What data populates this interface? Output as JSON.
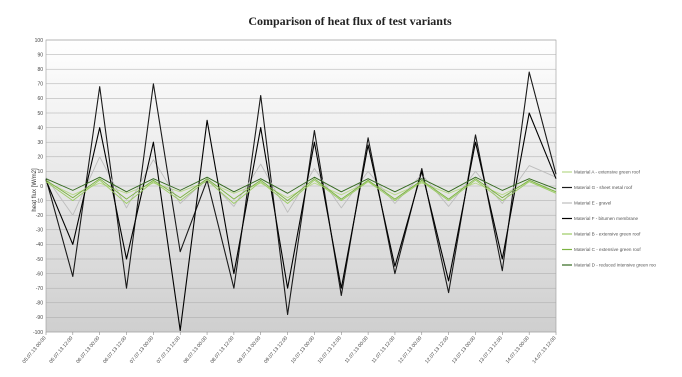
{
  "chart_data": {
    "type": "line",
    "title": "Comparison of heat flux of test variants",
    "xlabel": "",
    "ylabel": "heat flux [W/m2]",
    "ylim": [
      -100,
      100
    ],
    "yticks": [
      100,
      90,
      80,
      70,
      60,
      50,
      40,
      30,
      20,
      10,
      0,
      -10,
      -20,
      -30,
      -40,
      -50,
      -60,
      -70,
      -80,
      -90,
      -100
    ],
    "grid": true,
    "legend_position": "right",
    "x": [
      "05.07.13 00:00",
      "05.07.13 12:00",
      "06.07.13 00:00",
      "06.07.13 12:00",
      "07.07.13 00:00",
      "07.07.13 12:00",
      "08.07.13 00:00",
      "08.07.13 12:00",
      "09.07.13 00:00",
      "09.07.13 12:00",
      "10.07.13 00:00",
      "10.07.13 12:00",
      "11.07.13 00:00",
      "11.07.13 12:00",
      "12.07.13 00:00",
      "12.07.13 12:00",
      "13.07.13 00:00",
      "13.07.13 12:00",
      "14.07.13 00:00",
      "14.07.13 12:00"
    ],
    "series": [
      {
        "name": "Material A - extensive green roof",
        "color": "#b8d98a",
        "values": [
          3,
          -6,
          2,
          -5,
          2,
          -4,
          3,
          -5,
          2,
          -8,
          2,
          -6,
          3,
          -6,
          2,
          -5,
          2,
          -6,
          3,
          -4
        ]
      },
      {
        "name": "Material G - sheet metal roof",
        "color": "#1a1a1a",
        "values": [
          5,
          -62,
          68,
          -70,
          70,
          -45,
          4,
          -70,
          62,
          -88,
          38,
          -75,
          33,
          -60,
          12,
          -73,
          35,
          -58,
          78,
          8
        ]
      },
      {
        "name": "Material E - gravel",
        "color": "#bdbdbd",
        "values": [
          6,
          -20,
          20,
          -15,
          18,
          -12,
          5,
          -14,
          15,
          -18,
          12,
          -15,
          10,
          -12,
          8,
          -14,
          10,
          -12,
          14,
          6
        ]
      },
      {
        "name": "Material F - bitumen membrane",
        "color": "#000000",
        "values": [
          4,
          -40,
          40,
          -50,
          30,
          -99,
          45,
          -60,
          40,
          -70,
          30,
          -70,
          28,
          -55,
          10,
          -65,
          30,
          -50,
          50,
          5
        ]
      },
      {
        "name": "Material B - extensive green roof",
        "color": "#9ccc65",
        "values": [
          3,
          -10,
          4,
          -12,
          3,
          -10,
          4,
          -12,
          3,
          -12,
          4,
          -10,
          3,
          -10,
          3,
          -10,
          4,
          -10,
          3,
          -5
        ]
      },
      {
        "name": "Material C - extensive green roof",
        "color": "#7cb342",
        "values": [
          4,
          -8,
          5,
          -9,
          4,
          -8,
          5,
          -9,
          4,
          -10,
          5,
          -9,
          4,
          -9,
          4,
          -9,
          5,
          -8,
          4,
          -4
        ]
      },
      {
        "name": "Material D - reduced intensive green roo",
        "color": "#33691e",
        "values": [
          5,
          -3,
          6,
          -4,
          5,
          -3,
          6,
          -4,
          5,
          -5,
          6,
          -4,
          5,
          -4,
          5,
          -4,
          6,
          -3,
          5,
          -2
        ]
      }
    ]
  }
}
